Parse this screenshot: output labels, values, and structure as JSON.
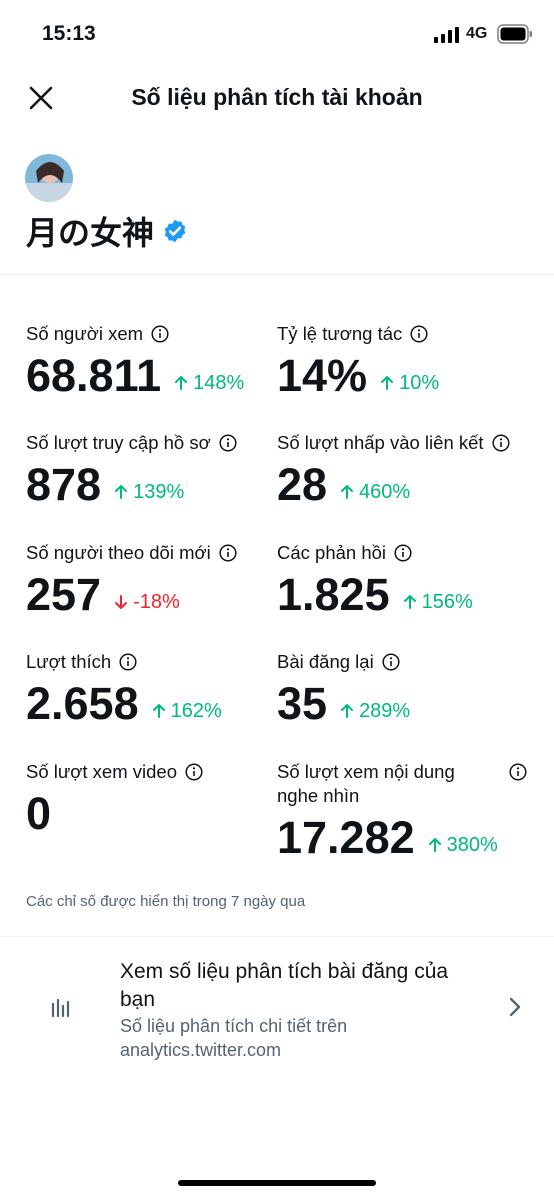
{
  "status_bar": {
    "time": "15:13",
    "network": "4G"
  },
  "header": {
    "title": "Số liệu phân tích tài khoản"
  },
  "profile": {
    "name": "月の女神"
  },
  "metrics": [
    {
      "label": "Số người xem",
      "value": "68.811",
      "change": "148%",
      "direction": "up"
    },
    {
      "label": "Tỷ lệ tương tác",
      "value": "14%",
      "change": "10%",
      "direction": "up"
    },
    {
      "label": "Số lượt truy cập hồ sơ",
      "value": "878",
      "change": "139%",
      "direction": "up"
    },
    {
      "label": "Số lượt nhấp vào liên kết",
      "value": "28",
      "change": "460%",
      "direction": "up"
    },
    {
      "label": "Số người theo dõi mới",
      "value": "257",
      "change": "-18%",
      "direction": "down"
    },
    {
      "label": "Các phản hồi",
      "value": "1.825",
      "change": "156%",
      "direction": "up"
    },
    {
      "label": "Lượt thích",
      "value": "2.658",
      "change": "162%",
      "direction": "up"
    },
    {
      "label": "Bài đăng lại",
      "value": "35",
      "change": "289%",
      "direction": "up"
    },
    {
      "label": "Số lượt xem video",
      "value": "0"
    },
    {
      "label": "Số lượt xem nội dung nghe nhìn",
      "value": "17.282",
      "change": "380%",
      "direction": "up"
    }
  ],
  "note": "Các chỉ số được hiển thị trong 7 ngày qua",
  "link": {
    "title": "Xem số liệu phân tích bài đăng của bạn",
    "subtitle": "Số liệu phân tích chi tiết trên analytics.twitter.com"
  }
}
